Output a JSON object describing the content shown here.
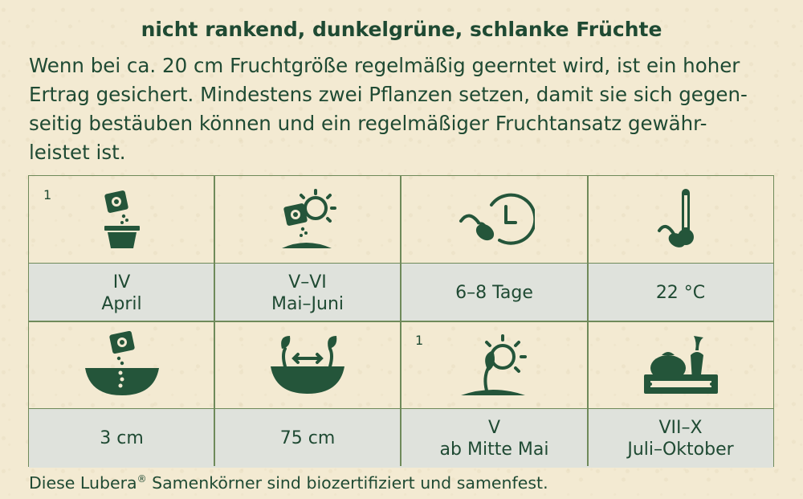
{
  "headline": "nicht rankend, dunkelgrüne, schlanke Früchte",
  "description_lines": [
    "Wenn bei ca. 20 cm Fruchtgröße regelmäßig geerntet wird, ist ein hoher",
    "Ertrag gesichert. Mindestens zwei Pflanzen setzen, damit sie sich gegen-",
    "seitig bestäuben können und ein regelmäßiger Fruchtansatz gewähr-",
    "leistet ist."
  ],
  "grid": {
    "row1": [
      {
        "icon": "sowing-pot-icon",
        "corner": "1",
        "line1": "IV",
        "line2": "April"
      },
      {
        "icon": "sowing-outdoor-sun-icon",
        "corner": "",
        "line1": "V–VI",
        "line2": "Mai–Juni"
      },
      {
        "icon": "germination-time-icon",
        "corner": "",
        "line1": "6–8 Tage",
        "line2": ""
      },
      {
        "icon": "germination-temperature-icon",
        "corner": "",
        "line1": "22 °C",
        "line2": ""
      }
    ],
    "row2": [
      {
        "icon": "sowing-depth-icon",
        "corner": "",
        "line1": "3 cm",
        "line2": ""
      },
      {
        "icon": "plant-spacing-icon",
        "corner": "",
        "line1": "75 cm",
        "line2": ""
      },
      {
        "icon": "planting-out-sun-icon",
        "corner": "1",
        "line1": "V",
        "line2": "ab Mitte Mai"
      },
      {
        "icon": "harvest-crate-icon",
        "corner": "",
        "line1": "VII–X",
        "line2": "Juli–Oktober"
      }
    ]
  },
  "footer": {
    "text_before": "Diese Lubera",
    "registered": "®",
    "text_after": " Samenkörner sind biozertifiziert und samenfest."
  },
  "colors": {
    "text": "#1f4a33",
    "icon": "#24553a",
    "label_bg": "#dfe2dc",
    "background": "#f3ead2",
    "border": "#6f8a5a"
  }
}
